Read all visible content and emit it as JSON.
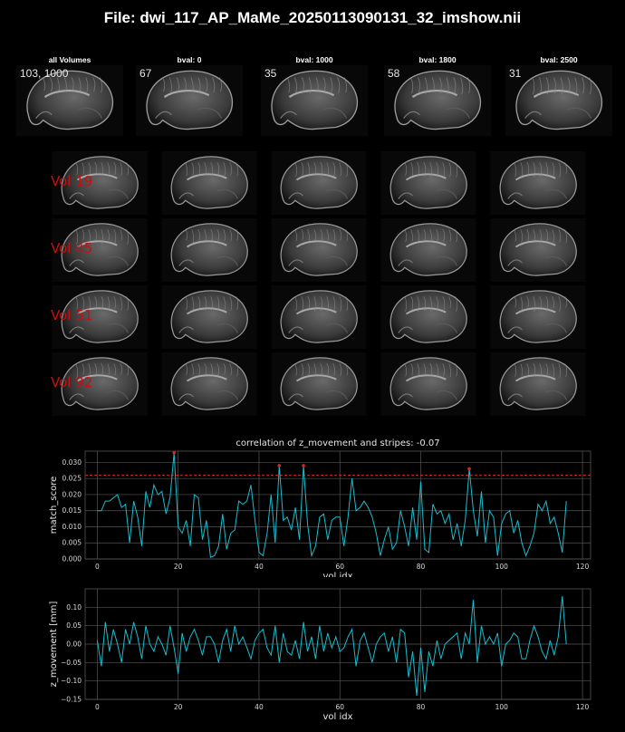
{
  "title": "File: dwi_117_AP_MaMe_20250113090131_32_imshow.nii",
  "thumbnails": [
    {
      "label": "all Volumes",
      "count": "103, 1000"
    },
    {
      "label": "bval: 0",
      "count": "67"
    },
    {
      "label": "bval: 1000",
      "count": "35"
    },
    {
      "label": "bval: 1800",
      "count": "58"
    },
    {
      "label": "bval: 2500",
      "count": "31"
    }
  ],
  "volume_rows": [
    {
      "label": "Vol 19"
    },
    {
      "label": "Vol 45"
    },
    {
      "label": "Vol 51"
    },
    {
      "label": "Vol 92"
    }
  ],
  "colors": {
    "line": "#17becf",
    "threshold": "#d62728",
    "marker": "#d62728",
    "background": "#000000",
    "grid": "#555555"
  },
  "chart_data": [
    {
      "type": "line",
      "title": "correlation of z_movement and stripes: -0.07",
      "xlabel": "vol idx",
      "ylabel": "match_score",
      "xlim": [
        -3,
        122
      ],
      "ylim": [
        0,
        0.0335
      ],
      "xticks": [
        0,
        20,
        40,
        60,
        80,
        100,
        120
      ],
      "yticks": [
        0.0,
        0.005,
        0.01,
        0.015,
        0.02,
        0.025,
        0.03
      ],
      "ytick_labels": [
        "0.000",
        "0.005",
        "0.010",
        "0.015",
        "0.020",
        "0.025",
        "0.030"
      ],
      "grid": true,
      "threshold": 0.026,
      "peaks": [
        19,
        45,
        51,
        92
      ],
      "values": [
        0.015,
        0.015,
        0.018,
        0.018,
        0.019,
        0.02,
        0.016,
        0.017,
        0.005,
        0.018,
        0.013,
        0.004,
        0.021,
        0.016,
        0.023,
        0.02,
        0.021,
        0.014,
        0.019,
        0.033,
        0.01,
        0.008,
        0.012,
        0.004,
        0.02,
        0.019,
        0.006,
        0.012,
        0.0005,
        0.001,
        0.004,
        0.014,
        0.003,
        0.008,
        0.009,
        0.018,
        0.017,
        0.018,
        0.023,
        0.012,
        0.002,
        0.001,
        0.008,
        0.02,
        0.005,
        0.029,
        0.012,
        0.013,
        0.009,
        0.016,
        0.006,
        0.029,
        0.011,
        0.001,
        0.004,
        0.013,
        0.014,
        0.006,
        0.012,
        0.013,
        0.013,
        0.004,
        0.013,
        0.025,
        0.015,
        0.016,
        0.018,
        0.016,
        0.013,
        0.008,
        0.001,
        0.006,
        0.01,
        0.003,
        0.005,
        0.015,
        0.01,
        0.004,
        0.016,
        0.006,
        0.024,
        0.003,
        0.002,
        0.017,
        0.014,
        0.015,
        0.011,
        0.014,
        0.006,
        0.011,
        0.004,
        0.012,
        0.028,
        0.015,
        0.007,
        0.021,
        0.005,
        0.015,
        0.013,
        0.001,
        0.011,
        0.014,
        0.015,
        0.008,
        0.012,
        0.005,
        0.001,
        0.004,
        0.008,
        0.017,
        0.015,
        0.018,
        0.011,
        0.013,
        0.008,
        0.002,
        0.018
      ],
      "marker_color": "#d62728"
    },
    {
      "type": "line",
      "title": "",
      "xlabel": "vol idx",
      "ylabel": "z_movement [mm]",
      "xlim": [
        -3,
        122
      ],
      "ylim": [
        -0.15,
        0.15
      ],
      "xticks": [
        0,
        20,
        40,
        60,
        80,
        100,
        120
      ],
      "yticks": [
        -0.15,
        -0.1,
        -0.05,
        0.0,
        0.05,
        0.1
      ],
      "ytick_labels": [
        "−0.15",
        "−0.10",
        "−0.05",
        "0.00",
        "0.05",
        "0.10"
      ],
      "grid": true,
      "values": [
        0.01,
        -0.06,
        0.06,
        -0.02,
        0.04,
        0.0,
        -0.05,
        0.04,
        0.0,
        0.06,
        0.02,
        -0.04,
        0.05,
        0.0,
        -0.02,
        0.02,
        0.0,
        -0.03,
        0.05,
        -0.01,
        -0.08,
        0.03,
        -0.02,
        0.02,
        0.04,
        0.01,
        -0.03,
        0.02,
        0.02,
        0.0,
        -0.05,
        0.01,
        0.04,
        -0.02,
        0.05,
        0.0,
        0.02,
        -0.01,
        -0.04,
        0.01,
        0.03,
        0.04,
        -0.01,
        -0.03,
        0.05,
        -0.05,
        0.03,
        -0.02,
        -0.03,
        0.01,
        -0.04,
        0.06,
        -0.02,
        0.02,
        -0.04,
        0.05,
        -0.02,
        0.03,
        -0.01,
        0.02,
        -0.02,
        -0.01,
        0.02,
        0.04,
        -0.06,
        0.01,
        0.03,
        -0.01,
        -0.05,
        0.0,
        0.02,
        0.03,
        -0.02,
        0.02,
        -0.05,
        0.04,
        0.03,
        -0.09,
        -0.02,
        -0.14,
        -0.01,
        -0.13,
        -0.02,
        -0.06,
        0.01,
        -0.04,
        0.0,
        0.01,
        0.02,
        0.03,
        -0.04,
        0.03,
        0.0,
        0.12,
        -0.05,
        0.05,
        0.0,
        0.02,
        0.0,
        0.03,
        -0.06,
        0.0,
        0.01,
        0.03,
        0.02,
        -0.04,
        -0.04,
        0.01,
        0.05,
        0.02,
        -0.02,
        -0.04,
        0.01,
        -0.03,
        0.02,
        0.13,
        0.0
      ]
    }
  ]
}
